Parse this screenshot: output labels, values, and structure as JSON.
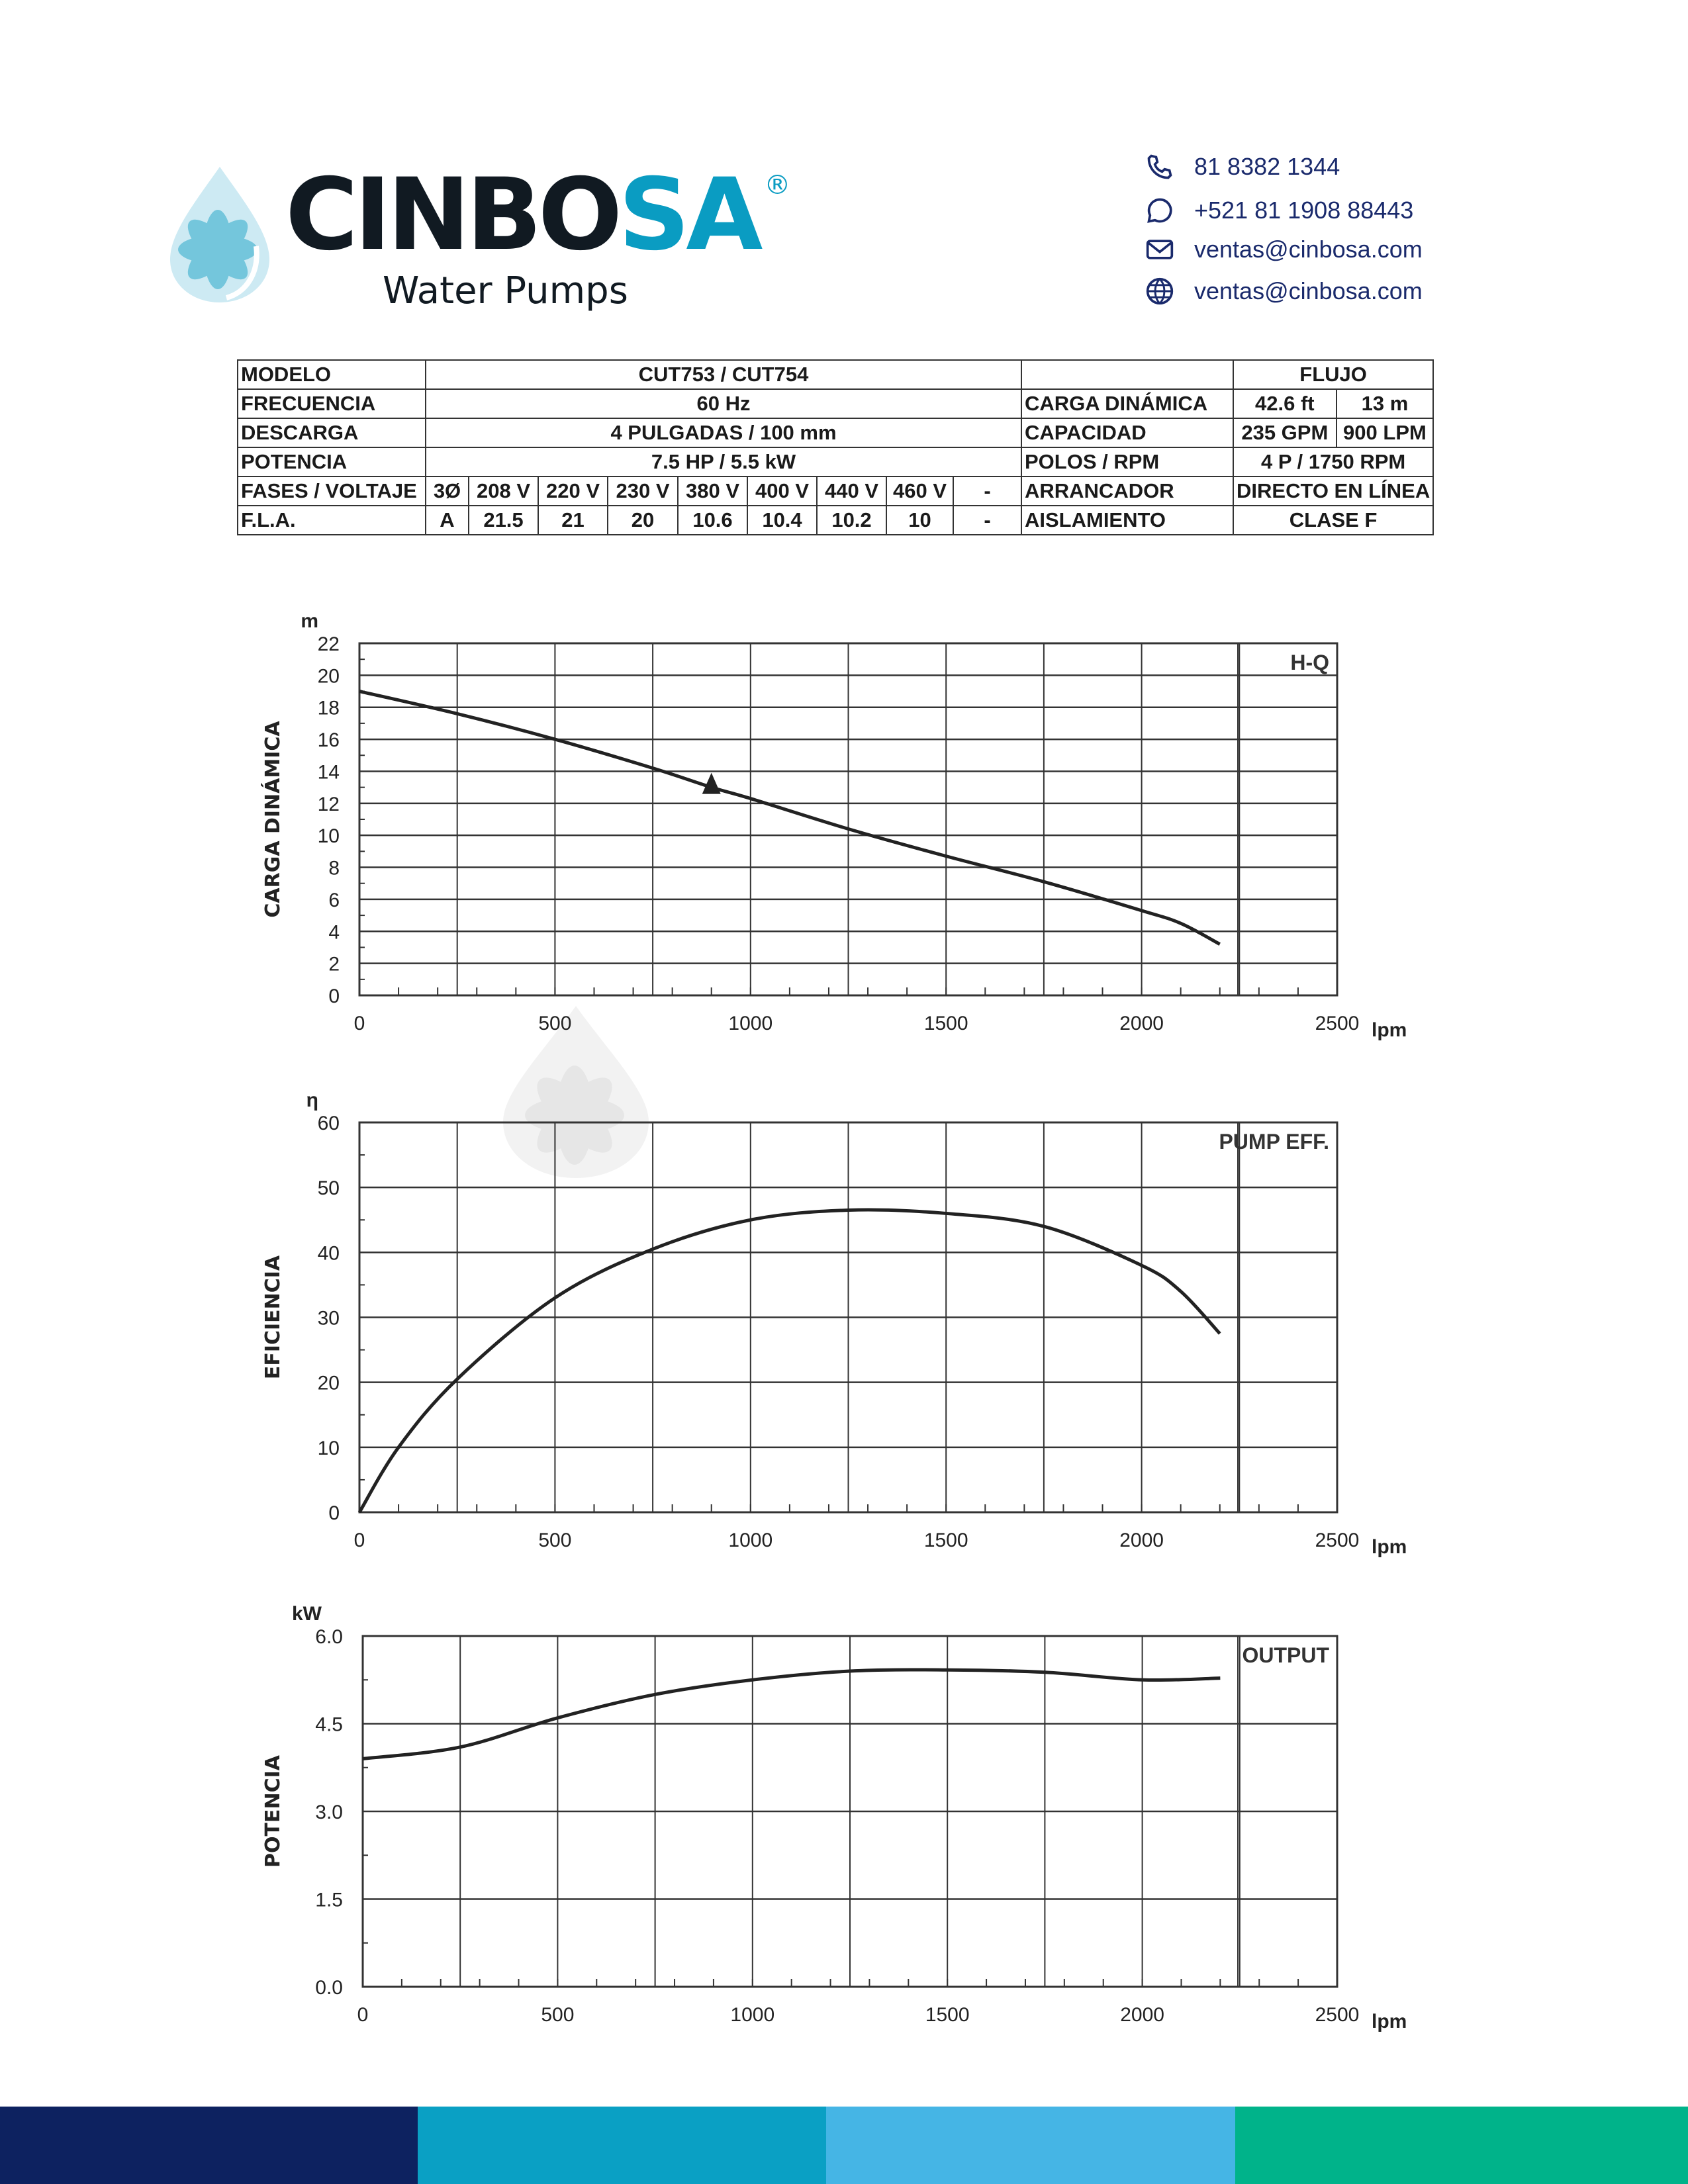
{
  "brand": {
    "name_main": "CINBO",
    "name_accent": "SA",
    "registered": "®",
    "tagline": "Water Pumps",
    "colors": {
      "dark": "#111a22",
      "accent": "#0a9cc2"
    }
  },
  "contacts": [
    {
      "icon": "phone-icon",
      "text": "81 8382 1344"
    },
    {
      "icon": "whatsapp-icon",
      "text": "+521 81 1908 88443"
    },
    {
      "icon": "mail-icon",
      "text": "ventas@cinbosa.com"
    },
    {
      "icon": "globe-icon",
      "text": "ventas@cinbosa.com"
    }
  ],
  "spec": {
    "modelo": {
      "label": "MODELO",
      "value": "CUT753 / CUT754"
    },
    "flujo": "FLUJO",
    "frecuencia": {
      "label": "FRECUENCIA",
      "value": "60 Hz"
    },
    "carga": {
      "label": "CARGA DINÁMICA",
      "ft": "42.6 ft",
      "m": "13 m"
    },
    "descarga": {
      "label": "DESCARGA",
      "value": "4 PULGADAS / 100 mm"
    },
    "capacidad": {
      "label": "CAPACIDAD",
      "gpm": "235 GPM",
      "lpm": "900 LPM"
    },
    "potencia": {
      "label": "POTENCIA",
      "value": "7.5 HP / 5.5 kW"
    },
    "polos": {
      "label": "POLOS / RPM",
      "value": "4 P / 1750 RPM"
    },
    "fases": {
      "label": "FASES / VOLTAJE",
      "values": [
        "3Ø",
        "208 V",
        "220 V",
        "230 V",
        "380 V",
        "400 V",
        "440 V",
        "460 V",
        "-"
      ]
    },
    "arrancador": {
      "label": "ARRANCADOR",
      "value": "DIRECTO EN LÍNEA"
    },
    "fla": {
      "label": "F.L.A.",
      "values": [
        "A",
        "21.5",
        "21",
        "20",
        "10.6",
        "10.4",
        "10.2",
        "10",
        "-"
      ]
    },
    "aislamiento": {
      "label": "AISLAMIENTO",
      "value": "CLASE F"
    }
  },
  "watermark": {
    "name": "CINBOSA®",
    "tagline": "Water Pumps"
  },
  "chart_data": [
    {
      "type": "line",
      "title": "H-Q",
      "ylabel": "CARGA DINÁMICA",
      "yunit": "m",
      "xunit": "lpm",
      "xlim": [
        0,
        2500
      ],
      "ylim": [
        0,
        22
      ],
      "xticks": [
        0,
        500,
        1000,
        1500,
        2000,
        2500
      ],
      "yticks": [
        0,
        2,
        4,
        6,
        8,
        10,
        12,
        14,
        16,
        18,
        20,
        22
      ],
      "grid": true,
      "x": [
        0,
        250,
        500,
        750,
        900,
        1000,
        1250,
        1500,
        1750,
        2000,
        2100,
        2200
      ],
      "y": [
        19,
        17.6,
        16,
        14.2,
        13,
        12.3,
        10.4,
        8.7,
        7.1,
        5.3,
        4.5,
        3.2
      ],
      "marker": {
        "x": 900,
        "y": 13,
        "shape": "triangle"
      }
    },
    {
      "type": "line",
      "title": "PUMP EFF.",
      "ylabel": "EFICIENCIA",
      "yunit": "η",
      "xunit": "lpm",
      "xlim": [
        0,
        2500
      ],
      "ylim": [
        0,
        60
      ],
      "xticks": [
        0,
        500,
        1000,
        1500,
        2000,
        2500
      ],
      "yticks": [
        0,
        10,
        20,
        30,
        40,
        50,
        60
      ],
      "grid": true,
      "x": [
        0,
        100,
        250,
        500,
        750,
        1000,
        1250,
        1500,
        1750,
        2000,
        2100,
        2200
      ],
      "y": [
        0,
        10,
        20.5,
        33,
        40.5,
        45,
        46.5,
        46,
        44,
        38,
        34,
        27.5
      ]
    },
    {
      "type": "line",
      "title": "OUTPUT",
      "ylabel": "POTENCIA",
      "yunit": "kW",
      "xunit": "lpm",
      "xlim": [
        0,
        2500
      ],
      "ylim": [
        0,
        6
      ],
      "xticks": [
        0,
        500,
        1000,
        1500,
        2000,
        2500
      ],
      "yticks": [
        "0.0",
        "1.5",
        "3.0",
        "4.5",
        "6.0"
      ],
      "grid": true,
      "x": [
        0,
        250,
        500,
        750,
        1000,
        1250,
        1500,
        1750,
        2000,
        2200
      ],
      "y": [
        3.9,
        4.1,
        4.6,
        5.0,
        5.25,
        5.4,
        5.42,
        5.38,
        5.25,
        5.28
      ]
    }
  ],
  "footer_colors": [
    "#0d2260",
    "#0aa0c4",
    "#45b5e5",
    "#00b38a"
  ]
}
